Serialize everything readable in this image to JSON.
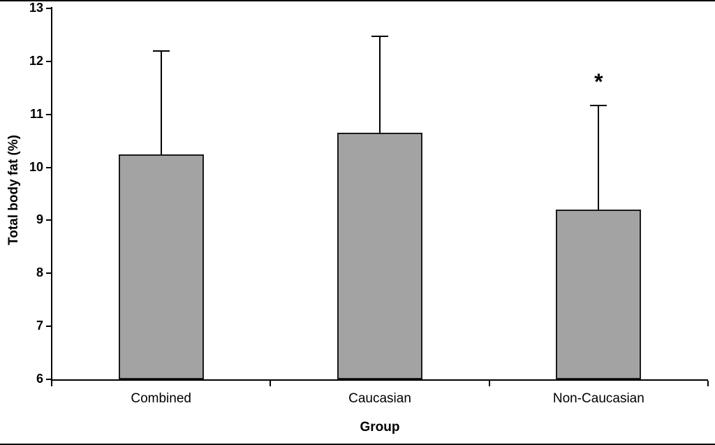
{
  "chart_data": {
    "type": "bar",
    "title": "",
    "xlabel": "Group",
    "ylabel": "Total body fat (%)",
    "categories": [
      "Combined",
      "Caucasian",
      "Non-Caucasian"
    ],
    "values": [
      10.25,
      10.65,
      9.2
    ],
    "error_upper": [
      1.95,
      1.82,
      1.97
    ],
    "point_labels": [
      "",
      "",
      "*"
    ],
    "ylim": [
      6,
      13
    ],
    "yticks": [
      6,
      7,
      8,
      9,
      10,
      11,
      12,
      13
    ],
    "grid": "off",
    "legend": "none",
    "bar_color": "#a3a3a3",
    "bar_border_color": "#1a1a1a",
    "axis_color": "#000000"
  }
}
